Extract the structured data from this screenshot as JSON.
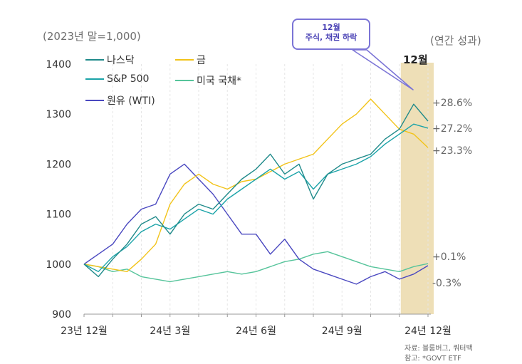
{
  "header": {
    "unit_left": "(2023년 말=1,000)",
    "unit_right": "(연간 성과)",
    "highlight_label": "12월"
  },
  "callout": {
    "line1": "12월",
    "line2": "주식, 채권 하락"
  },
  "source": {
    "line1": "자료: 블룸버그, 쿼터백",
    "line2": "참고: *GOVT ETF"
  },
  "colors": {
    "nasdaq": "#1f8a8a",
    "gold": "#f2c318",
    "sp500": "#1aa3a8",
    "treasury": "#56c49b",
    "wti": "#4a48c0",
    "highlight": "#eedfb7",
    "grid": "#e6e6e6",
    "callout_border": "#7b74d6"
  },
  "chart_data": {
    "type": "line",
    "title": "",
    "xlabel": "",
    "ylabel": "",
    "ylim": [
      900,
      1400
    ],
    "yticks": [
      900,
      1000,
      1100,
      1200,
      1300,
      1400
    ],
    "xlim": [
      0,
      12
    ],
    "xticks": [
      {
        "pos": 0,
        "label": "23년 12월"
      },
      {
        "pos": 3,
        "label": "24년 3월"
      },
      {
        "pos": 6,
        "label": "24년 6월"
      },
      {
        "pos": 9,
        "label": "24년 9월"
      },
      {
        "pos": 12,
        "label": "24년 12월"
      }
    ],
    "highlight_range": [
      11.05,
      12.2
    ],
    "grid": "vertical-dashed",
    "legend_position": "top-left",
    "x": [
      0,
      0.5,
      1,
      1.5,
      2,
      2.5,
      3,
      3.5,
      4,
      4.5,
      5,
      5.5,
      6,
      6.5,
      7,
      7.5,
      8,
      8.5,
      9,
      9.5,
      10,
      10.5,
      11,
      11.5,
      12
    ],
    "series": [
      {
        "name": "나스닥",
        "key": "nasdaq",
        "end_label": "+28.6%",
        "values": [
          1000,
          975,
          1010,
          1040,
          1080,
          1095,
          1060,
          1100,
          1120,
          1110,
          1140,
          1170,
          1190,
          1220,
          1180,
          1200,
          1130,
          1180,
          1200,
          1210,
          1220,
          1250,
          1270,
          1320,
          1286
        ]
      },
      {
        "name": "S&P 500",
        "key": "sp500",
        "end_label": "+27.2%",
        "values": [
          1000,
          985,
          1015,
          1035,
          1065,
          1080,
          1070,
          1090,
          1110,
          1100,
          1130,
          1150,
          1170,
          1190,
          1170,
          1185,
          1150,
          1180,
          1190,
          1200,
          1215,
          1240,
          1260,
          1280,
          1272
        ]
      },
      {
        "name": "금",
        "key": "gold",
        "end_label": "+23.3%",
        "values": [
          1000,
          995,
          990,
          985,
          1010,
          1040,
          1120,
          1160,
          1180,
          1160,
          1150,
          1165,
          1170,
          1185,
          1200,
          1210,
          1220,
          1250,
          1280,
          1300,
          1330,
          1300,
          1270,
          1260,
          1233
        ]
      },
      {
        "name": "미국 국채*",
        "key": "treasury",
        "end_label": "+0.1%",
        "values": [
          1000,
          995,
          985,
          990,
          975,
          970,
          965,
          970,
          975,
          980,
          985,
          980,
          985,
          995,
          1005,
          1010,
          1020,
          1025,
          1015,
          1005,
          995,
          990,
          985,
          995,
          1001
        ]
      },
      {
        "name": "원유 (WTI)",
        "key": "wti",
        "end_label": "-0.3%",
        "values": [
          1000,
          1020,
          1040,
          1080,
          1110,
          1120,
          1180,
          1200,
          1170,
          1140,
          1100,
          1060,
          1060,
          1020,
          1050,
          1010,
          990,
          980,
          970,
          960,
          975,
          985,
          970,
          980,
          997
        ]
      }
    ]
  },
  "legend": [
    {
      "label": "나스닥",
      "key": "nasdaq"
    },
    {
      "label": "금",
      "key": "gold"
    },
    {
      "label": "S&P 500",
      "key": "sp500"
    },
    {
      "label": "미국 국채*",
      "key": "treasury"
    },
    {
      "label": "원유 (WTI)",
      "key": "wti"
    }
  ]
}
